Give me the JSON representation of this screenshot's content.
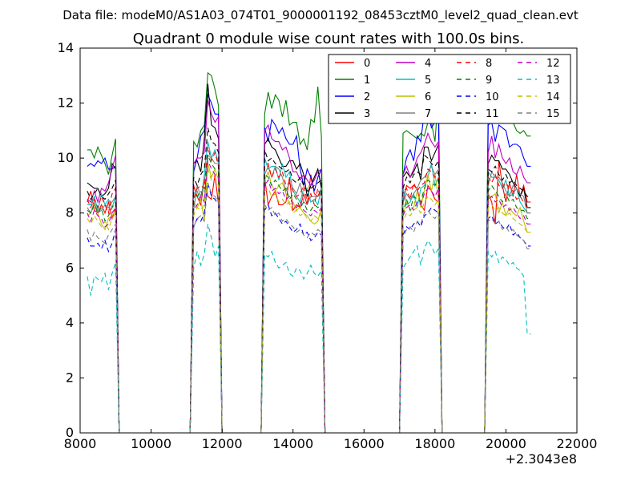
{
  "chart_data": {
    "type": "line",
    "suptitle": "Data file: modeM0/AS1A03_074T01_9000001192_08453cztM0_level2_quad_clean.evt",
    "title": "Quadrant 0 module wise count rates with 100.0s bins.",
    "xlabel": "",
    "ylabel": "",
    "x_offset_label": "+2.3043e8",
    "xlim": [
      8000,
      22000
    ],
    "ylim": [
      0,
      14
    ],
    "xticks": [
      "8000",
      "10000",
      "12000",
      "14000",
      "16000",
      "18000",
      "20000",
      "22000"
    ],
    "yticks": [
      "0",
      "2",
      "4",
      "6",
      "8",
      "10",
      "12",
      "14"
    ],
    "legend_position": "top-right",
    "bin_seconds": 100,
    "segments": [
      [
        8200,
        9000
      ],
      [
        11200,
        11900
      ],
      [
        13200,
        14800
      ],
      [
        17100,
        18100
      ],
      [
        19500,
        20700
      ]
    ],
    "series": [
      {
        "name": "0",
        "color": "#ff0000",
        "style": "solid",
        "values": [
          8.4,
          8.8,
          8.1,
          8.0,
          8.3,
          8.0,
          8.4,
          7.8,
          8.2,
          9.0,
          8.6,
          8.3,
          9.2,
          8.6,
          8.5,
          9.4,
          8.3,
          9.3,
          8.3,
          8.6,
          8.8,
          8.3,
          8.3,
          8.4,
          9.3,
          8.1,
          8.3,
          8.2,
          8.7,
          8.3,
          9.4,
          8.7,
          8.6,
          8.9,
          8.4,
          9.0,
          8.9,
          9.0,
          8.9,
          8.3,
          8.1,
          9.0,
          8.8,
          8.5,
          8.4,
          8.7,
          8.4,
          7.6,
          9.9,
          9.0,
          8.4,
          9.1,
          8.6,
          9.4,
          8.6,
          9.0,
          8.4
        ]
      },
      {
        "name": "1",
        "color": "#008000",
        "style": "solid",
        "values": [
          10.3,
          10.3,
          10.0,
          10.4,
          10.1,
          9.8,
          9.4,
          10.1,
          10.7,
          10.6,
          10.4,
          11.0,
          11.2,
          13.1,
          13.0,
          12.5,
          11.9,
          11.6,
          12.4,
          11.8,
          12.3,
          12.1,
          11.5,
          12.1,
          11.2,
          11.3,
          11.3,
          10.5,
          10.7,
          10.3,
          11.4,
          11.3,
          12.6,
          10.8,
          10.9,
          11.0,
          10.9,
          10.8,
          10.7,
          10.9,
          10.8,
          11.3,
          11.3,
          10.6,
          12.4,
          12.0,
          11.8,
          11.7,
          11.4,
          11.5,
          11.6,
          11.8,
          11.3,
          11.0,
          10.9,
          11.0,
          10.8
        ]
      },
      {
        "name": "2",
        "color": "#0000ff",
        "style": "solid",
        "values": [
          9.7,
          9.8,
          9.7,
          9.9,
          9.8,
          10.0,
          9.6,
          9.6,
          9.7,
          9.5,
          10.0,
          10.8,
          11.0,
          12.3,
          12.0,
          11.6,
          11.6,
          11.1,
          10.6,
          11.4,
          11.2,
          10.9,
          11.1,
          10.7,
          10.5,
          10.5,
          10.8,
          9.6,
          9.0,
          9.6,
          9.3,
          8.8,
          9.3,
          9.6,
          9.4,
          10.0,
          10.3,
          9.9,
          10.8,
          10.6,
          11.7,
          11.7,
          11.1,
          11.3,
          11.5,
          11.2,
          11.3,
          10.6,
          11.2,
          11.1,
          11.0,
          10.4,
          10.5,
          10.5,
          10.4,
          10.0,
          9.7
        ]
      },
      {
        "name": "3",
        "color": "#000000",
        "style": "solid",
        "values": [
          9.1,
          9.0,
          8.9,
          8.9,
          8.6,
          8.7,
          8.9,
          9.8,
          9.6,
          9.8,
          9.9,
          9.5,
          10.7,
          12.7,
          11.2,
          11.1,
          10.7,
          10.5,
          10.7,
          10.4,
          10.3,
          10.0,
          9.7,
          9.7,
          9.9,
          9.9,
          9.6,
          9.8,
          9.4,
          8.6,
          9.0,
          9.3,
          9.6,
          8.9,
          9.3,
          9.5,
          9.3,
          9.5,
          9.8,
          9.2,
          10.4,
          10.4,
          9.9,
          10.2,
          10.5,
          9.8,
          10.1,
          9.9,
          9.9,
          9.6,
          9.6,
          9.4,
          9.1,
          8.9,
          8.6,
          8.9,
          8.2
        ]
      },
      {
        "name": "4",
        "color": "#bf00bf",
        "style": "solid",
        "values": [
          8.5,
          8.4,
          8.8,
          8.4,
          8.9,
          8.8,
          9.1,
          9.6,
          10.1,
          9.8,
          10.0,
          10.0,
          10.2,
          12.1,
          11.6,
          11.3,
          11.5,
          11.0,
          11.2,
          10.7,
          10.6,
          10.6,
          10.3,
          10.4,
          10.0,
          9.5,
          9.5,
          9.2,
          9.4,
          9.2,
          9.0,
          9.2,
          9.5,
          9.6,
          9.4,
          9.7,
          9.3,
          9.6,
          10.0,
          10.2,
          10.5,
          10.9,
          10.6,
          10.4,
          10.6,
          10.2,
          10.8,
          10.0,
          10.5,
          10.0,
          9.8,
          10.0,
          9.5,
          9.4,
          9.7,
          9.3,
          9.1
        ]
      },
      {
        "name": "5",
        "color": "#00bfbf",
        "style": "solid",
        "values": [
          8.3,
          8.3,
          8.6,
          8.1,
          8.7,
          8.3,
          8.5,
          8.2,
          8.6,
          8.7,
          8.8,
          8.4,
          9.4,
          10.6,
          10.0,
          10.3,
          9.8,
          10.0,
          9.6,
          9.7,
          9.7,
          9.2,
          9.8,
          9.3,
          9.5,
          8.8,
          8.6,
          8.4,
          8.9,
          8.9,
          8.4,
          8.5,
          8.3,
          8.9,
          8.9,
          8.3,
          8.4,
          8.7,
          8.2,
          8.9,
          9.0,
          9.3,
          9.8,
          9.0,
          9.3,
          9.5,
          9.3,
          9.3,
          9.2,
          8.9,
          9.2,
          8.6,
          8.7,
          8.9,
          8.4,
          8.2,
          8.0
        ]
      },
      {
        "name": "6",
        "color": "#bfbf00",
        "style": "solid",
        "values": [
          7.9,
          8.0,
          8.3,
          8.0,
          7.6,
          7.4,
          7.8,
          7.9,
          8.1,
          8.4,
          8.2,
          8.5,
          7.7,
          9.8,
          9.3,
          9.6,
          9.2,
          9.2,
          9.5,
          9.0,
          8.8,
          9.0,
          9.1,
          8.7,
          8.3,
          8.4,
          8.1,
          8.2,
          8.0,
          7.9,
          7.7,
          7.6,
          7.7,
          8.2,
          7.9,
          8.4,
          8.1,
          8.2,
          8.8,
          8.2,
          8.8,
          9.4,
          8.8,
          9.4,
          8.5,
          8.6,
          8.6,
          8.7,
          8.0,
          8.4,
          7.9,
          8.2,
          8.0,
          7.9,
          8.2,
          7.7,
          7.3
        ]
      },
      {
        "name": "7",
        "color": "#808080",
        "style": "solid",
        "values": [
          8.2,
          8.0,
          8.4,
          8.0,
          8.1,
          8.3,
          8.2,
          8.4,
          8.6,
          8.1,
          9.0,
          8.6,
          9.1,
          10.1,
          10.0,
          9.8,
          9.8,
          9.4,
          9.7,
          9.3,
          9.7,
          9.6,
          9.3,
          8.8,
          9.1,
          8.9,
          8.7,
          9.1,
          8.4,
          8.3,
          8.6,
          8.6,
          8.6,
          8.7,
          8.4,
          8.7,
          8.5,
          8.7,
          8.9,
          9.2,
          9.3,
          9.5,
          9.7,
          9.4,
          9.6,
          9.0,
          9.5,
          9.3,
          9.3,
          9.1,
          8.8,
          8.6,
          9.0,
          8.9,
          8.7,
          8.6,
          8.0
        ]
      },
      {
        "name": "8",
        "color": "#ff0000",
        "style": "dashed",
        "values": [
          8.5,
          8.2,
          8.5,
          8.2,
          8.6,
          8.3,
          8.0,
          8.7,
          8.9,
          8.5,
          8.9,
          9.0,
          8.9,
          10.4,
          9.9,
          10.2,
          9.7,
          9.7,
          9.8,
          9.3,
          9.6,
          9.3,
          9.5,
          9.0,
          9.1,
          8.8,
          8.6,
          8.7,
          9.0,
          8.4,
          8.7,
          8.3,
          8.9,
          8.5,
          8.8,
          8.9,
          8.5,
          9.1,
          8.8,
          9.0,
          9.1,
          9.6,
          9.5,
          9.3,
          9.5,
          9.3,
          9.1,
          9.4,
          9.0,
          8.9,
          9.1,
          8.9,
          8.8,
          8.5,
          8.6,
          8.4,
          8.2
        ]
      },
      {
        "name": "9",
        "color": "#008000",
        "style": "dashed",
        "values": [
          8.1,
          8.0,
          8.3,
          8.0,
          8.2,
          7.7,
          7.9,
          8.2,
          8.4,
          8.7,
          8.6,
          8.8,
          8.5,
          10.1,
          9.8,
          9.6,
          9.5,
          9.4,
          9.3,
          9.0,
          9.2,
          9.0,
          8.8,
          8.9,
          8.5,
          8.7,
          8.5,
          8.2,
          8.4,
          8.1,
          8.1,
          8.3,
          8.2,
          8.3,
          8.0,
          8.5,
          8.1,
          8.6,
          8.5,
          8.4,
          8.9,
          9.2,
          9.1,
          9.0,
          9.2,
          8.8,
          9.0,
          8.8,
          8.6,
          8.4,
          8.7,
          8.4,
          8.5,
          8.2,
          8.1,
          8.1,
          7.8
        ]
      },
      {
        "name": "10",
        "color": "#0000ff",
        "style": "dashed",
        "values": [
          7.1,
          6.8,
          6.8,
          6.9,
          6.7,
          7.0,
          6.6,
          6.9,
          7.4,
          7.5,
          7.8,
          7.7,
          8.0,
          9.1,
          8.6,
          8.5,
          8.3,
          8.1,
          8.3,
          7.9,
          8.0,
          7.8,
          7.6,
          7.7,
          7.5,
          7.3,
          7.4,
          7.6,
          7.2,
          7.3,
          7.0,
          7.1,
          7.3,
          7.2,
          7.2,
          7.5,
          7.4,
          7.6,
          7.7,
          7.5,
          7.9,
          8.0,
          8.2,
          8.1,
          8.0,
          7.8,
          7.9,
          7.6,
          7.7,
          7.5,
          7.4,
          7.6,
          7.2,
          7.3,
          7.1,
          7.0,
          6.8
        ]
      },
      {
        "name": "11",
        "color": "#000000",
        "style": "dashed",
        "values": [
          8.8,
          8.5,
          8.7,
          8.9,
          8.6,
          8.5,
          8.7,
          8.9,
          9.2,
          9.3,
          9.0,
          9.4,
          9.6,
          11.1,
          10.6,
          10.5,
          10.2,
          10.3,
          9.9,
          10.0,
          9.8,
          9.7,
          9.6,
          9.5,
          9.6,
          9.2,
          9.1,
          9.3,
          9.0,
          8.8,
          8.9,
          9.0,
          9.1,
          9.2,
          8.9,
          9.3,
          9.1,
          9.4,
          9.5,
          9.4,
          10.1,
          10.0,
          9.8,
          9.7,
          9.9,
          9.6,
          9.5,
          9.7,
          9.4,
          9.2,
          9.4,
          9.1,
          9.2,
          9.0,
          8.9,
          8.8,
          8.6
        ]
      },
      {
        "name": "12",
        "color": "#bf00bf",
        "style": "dashed",
        "values": [
          8.0,
          7.7,
          8.1,
          7.9,
          7.8,
          7.5,
          7.6,
          8.0,
          8.2,
          8.1,
          8.3,
          8.6,
          8.4,
          9.9,
          9.6,
          9.4,
          9.3,
          9.0,
          9.2,
          8.8,
          8.9,
          8.7,
          8.8,
          8.5,
          8.6,
          8.3,
          8.2,
          8.4,
          8.1,
          8.0,
          7.9,
          8.1,
          8.0,
          8.2,
          7.9,
          8.2,
          8.3,
          8.1,
          8.4,
          8.3,
          8.7,
          8.9,
          8.8,
          8.6,
          8.9,
          8.5,
          8.6,
          8.4,
          8.5,
          8.2,
          8.3,
          8.1,
          8.2,
          8.0,
          7.8,
          7.9,
          7.6
        ]
      },
      {
        "name": "13",
        "color": "#00bfbf",
        "style": "dashed",
        "values": [
          5.7,
          5.0,
          5.7,
          5.6,
          5.5,
          5.8,
          5.2,
          5.8,
          6.2,
          6.0,
          6.6,
          6.1,
          6.5,
          7.6,
          7.1,
          6.4,
          6.8,
          6.5,
          6.4,
          6.6,
          6.2,
          6.0,
          6.1,
          6.2,
          5.8,
          5.7,
          6.0,
          5.9,
          5.6,
          5.8,
          6.1,
          5.8,
          5.7,
          5.9,
          6.0,
          6.2,
          6.4,
          6.6,
          6.8,
          6.1,
          6.7,
          7.0,
          6.8,
          6.5,
          6.7,
          6.6,
          6.4,
          6.6,
          6.2,
          6.4,
          6.3,
          6.1,
          6.2,
          6.0,
          5.9,
          5.7,
          3.6
        ]
      },
      {
        "name": "14",
        "color": "#bfbf00",
        "style": "dashed",
        "values": [
          7.8,
          7.6,
          7.9,
          7.7,
          7.5,
          7.7,
          7.4,
          7.8,
          8.0,
          7.9,
          8.2,
          8.1,
          8.3,
          9.6,
          9.2,
          9.3,
          9.0,
          8.8,
          8.9,
          8.6,
          8.7,
          8.4,
          8.5,
          8.3,
          8.4,
          8.0,
          8.1,
          7.9,
          8.0,
          7.8,
          7.7,
          7.9,
          7.8,
          8.0,
          7.7,
          8.0,
          7.9,
          8.1,
          8.2,
          8.0,
          8.4,
          8.6,
          8.5,
          8.3,
          8.5,
          8.2,
          8.3,
          8.1,
          8.2,
          8.0,
          7.9,
          8.0,
          7.8,
          7.7,
          7.6,
          7.5,
          7.3
        ]
      },
      {
        "name": "15",
        "color": "#808080",
        "style": "dashed",
        "values": [
          7.4,
          7.0,
          7.3,
          7.1,
          7.0,
          6.9,
          7.2,
          7.4,
          7.6,
          7.5,
          7.8,
          7.9,
          7.7,
          9.1,
          8.7,
          8.6,
          8.4,
          8.3,
          8.1,
          8.2,
          7.9,
          8.0,
          7.7,
          7.8,
          7.6,
          7.5,
          7.3,
          7.4,
          7.2,
          7.1,
          7.3,
          7.2,
          7.4,
          7.3,
          7.1,
          7.4,
          7.5,
          7.3,
          7.7,
          7.6,
          8.0,
          8.1,
          7.9,
          7.8,
          8.0,
          7.7,
          7.8,
          7.6,
          7.7,
          7.4,
          7.5,
          7.3,
          7.4,
          7.2,
          7.1,
          7.0,
          6.7
        ]
      }
    ]
  }
}
